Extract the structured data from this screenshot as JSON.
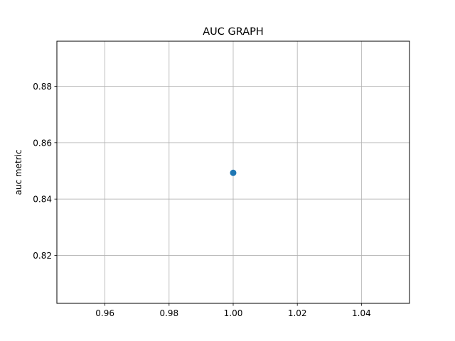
{
  "chart_data": {
    "type": "scatter",
    "title": "AUC GRAPH",
    "xlabel": "",
    "ylabel": "auc metric",
    "xlim": [
      0.945,
      1.055
    ],
    "ylim": [
      0.803,
      0.896
    ],
    "x_ticks": [
      0.96,
      0.98,
      1.0,
      1.02,
      1.04
    ],
    "x_tick_labels": [
      "0.96",
      "0.98",
      "1.00",
      "1.02",
      "1.04"
    ],
    "y_ticks": [
      0.82,
      0.84,
      0.86,
      0.88
    ],
    "y_tick_labels": [
      "0.82",
      "0.84",
      "0.86",
      "0.88"
    ],
    "grid": true,
    "series": [
      {
        "color": "#1f77b4",
        "x": [
          1.0
        ],
        "y": [
          0.8493
        ]
      }
    ]
  }
}
